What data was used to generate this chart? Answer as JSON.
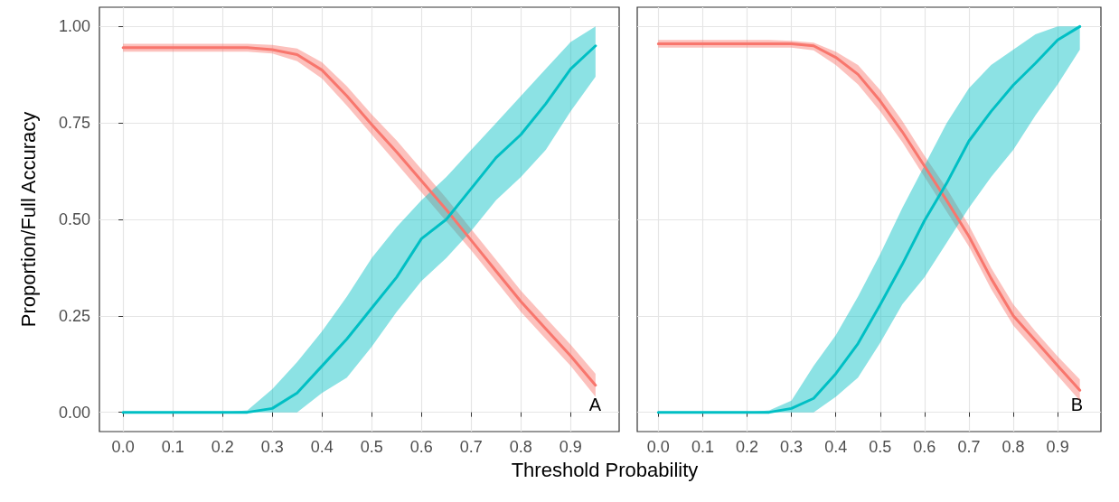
{
  "chart_data": [
    {
      "type": "line",
      "ylabel": "Proportion/Full Accuracy",
      "xlabel": "Threshold Probability",
      "annotations": [
        "A"
      ],
      "grid": true,
      "marker": "none",
      "line_style": "solid",
      "xlim": [
        -0.0475,
        0.9975
      ],
      "xticks": [
        {
          "value": 0,
          "label": "0.0"
        },
        0.1,
        0.2,
        0.3,
        0.4,
        0.5,
        0.6,
        0.7,
        0.8,
        0.9
      ],
      "ylim": [
        -0.05,
        1.05
      ],
      "yticks": [
        {
          "value": 0,
          "label": "0.00"
        },
        {
          "value": 0.25,
          "label": "0.25"
        },
        {
          "value": 0.5,
          "label": "0.50"
        },
        {
          "value": 0.75,
          "label": "0.75"
        },
        {
          "value": 1,
          "label": "1.00"
        }
      ],
      "x": [
        0,
        0.05,
        0.1,
        0.15,
        0.2,
        0.25,
        0.3,
        0.35,
        0.4,
        0.45,
        0.5,
        0.55,
        0.6,
        0.65,
        0.7,
        0.75,
        0.8,
        0.85,
        0.9,
        0.95
      ],
      "series": [
        {
          "color": "#f8766d",
          "values": [
            0.945,
            0.945,
            0.945,
            0.945,
            0.945,
            0.945,
            0.94,
            0.927,
            0.887,
            0.82,
            0.746,
            0.675,
            0.6,
            0.525,
            0.446,
            0.366,
            0.287,
            0.216,
            0.146,
            0.07
          ],
          "lower": [
            0.935,
            0.935,
            0.935,
            0.935,
            0.935,
            0.935,
            0.93,
            0.91,
            0.865,
            0.795,
            0.72,
            0.645,
            0.57,
            0.495,
            0.42,
            0.34,
            0.26,
            0.19,
            0.12,
            0.04
          ],
          "upper": [
            0.955,
            0.955,
            0.955,
            0.955,
            0.955,
            0.955,
            0.952,
            0.943,
            0.907,
            0.845,
            0.772,
            0.705,
            0.63,
            0.555,
            0.475,
            0.395,
            0.315,
            0.245,
            0.175,
            0.1
          ]
        },
        {
          "color": "#00bfc4",
          "values": [
            0,
            0,
            0,
            0,
            0,
            0,
            0.01,
            0.05,
            0.12,
            0.19,
            0.27,
            0.35,
            0.45,
            0.5,
            0.58,
            0.66,
            0.72,
            0.8,
            0.89,
            0.95
          ],
          "lower": [
            0,
            0,
            0,
            0,
            0,
            0,
            0,
            0,
            0.05,
            0.09,
            0.17,
            0.26,
            0.34,
            0.4,
            0.47,
            0.55,
            0.61,
            0.68,
            0.78,
            0.87
          ],
          "upper": [
            0,
            0,
            0,
            0,
            0,
            0.005,
            0.06,
            0.13,
            0.21,
            0.3,
            0.4,
            0.48,
            0.55,
            0.61,
            0.68,
            0.75,
            0.82,
            0.89,
            0.96,
            1.0
          ]
        }
      ]
    },
    {
      "type": "line",
      "annotations": [
        "B"
      ],
      "grid": true,
      "marker": "none",
      "line_style": "solid",
      "tick_labels": "x",
      "xlim": [
        -0.0475,
        0.9975
      ],
      "xticks": [
        {
          "value": 0,
          "label": "0.0"
        },
        0.1,
        0.2,
        0.3,
        0.4,
        0.5,
        0.6,
        0.7,
        0.8,
        0.9
      ],
      "ylim": [
        -0.05,
        1.05
      ],
      "yticks": [
        0,
        0.25,
        0.5,
        0.75,
        1
      ],
      "x": [
        0,
        0.05,
        0.1,
        0.15,
        0.2,
        0.25,
        0.3,
        0.35,
        0.4,
        0.45,
        0.5,
        0.55,
        0.6,
        0.65,
        0.7,
        0.75,
        0.8,
        0.85,
        0.9,
        0.95
      ],
      "series": [
        {
          "color": "#f8766d",
          "values": [
            0.955,
            0.955,
            0.955,
            0.955,
            0.955,
            0.955,
            0.955,
            0.95,
            0.92,
            0.876,
            0.807,
            0.727,
            0.638,
            0.549,
            0.456,
            0.347,
            0.25,
            0.186,
            0.121,
            0.057
          ],
          "lower": [
            0.945,
            0.945,
            0.945,
            0.945,
            0.945,
            0.945,
            0.945,
            0.938,
            0.9,
            0.85,
            0.78,
            0.7,
            0.61,
            0.52,
            0.43,
            0.32,
            0.225,
            0.16,
            0.095,
            0.03
          ],
          "upper": [
            0.965,
            0.965,
            0.965,
            0.965,
            0.965,
            0.965,
            0.963,
            0.958,
            0.935,
            0.9,
            0.835,
            0.755,
            0.665,
            0.58,
            0.485,
            0.375,
            0.28,
            0.21,
            0.145,
            0.085
          ]
        },
        {
          "color": "#00bfc4",
          "values": [
            0,
            0,
            0,
            0,
            0,
            0,
            0.01,
            0.036,
            0.1,
            0.178,
            0.279,
            0.384,
            0.497,
            0.594,
            0.703,
            0.78,
            0.848,
            0.905,
            0.965,
            1.0
          ],
          "lower": [
            0,
            0,
            0,
            0,
            0,
            0,
            0,
            0,
            0.04,
            0.09,
            0.18,
            0.28,
            0.35,
            0.44,
            0.53,
            0.61,
            0.68,
            0.77,
            0.85,
            0.94
          ],
          "upper": [
            0,
            0,
            0,
            0,
            0,
            0.005,
            0.03,
            0.12,
            0.2,
            0.3,
            0.41,
            0.53,
            0.64,
            0.75,
            0.84,
            0.9,
            0.94,
            0.98,
            1.0,
            1.0
          ]
        }
      ]
    }
  ]
}
